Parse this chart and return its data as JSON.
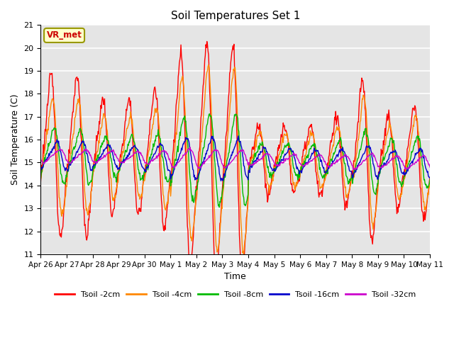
{
  "title": "Soil Temperatures Set 1",
  "xlabel": "Time",
  "ylabel": "Soil Temperature (C)",
  "ylim": [
    11.0,
    21.0
  ],
  "yticks": [
    11.0,
    12.0,
    13.0,
    14.0,
    15.0,
    16.0,
    17.0,
    18.0,
    19.0,
    20.0,
    21.0
  ],
  "background_color": "#e5e5e5",
  "line_colors": {
    "Tsoil -2cm": "#ff0000",
    "Tsoil -4cm": "#ff8800",
    "Tsoil -8cm": "#00bb00",
    "Tsoil -16cm": "#0000cc",
    "Tsoil -32cm": "#cc00cc"
  },
  "annotation_text": "VR_met",
  "annotation_bg": "#ffffcc",
  "annotation_border": "#999900",
  "annotation_text_color": "#cc0000",
  "xtick_labels": [
    "Apr 26",
    "Apr 27",
    "Apr 28",
    "Apr 29",
    "Apr 30",
    "May 1",
    "May 2",
    "May 3",
    "May 4",
    "May 5",
    "May 6",
    "May 7",
    "May 8",
    "May 9",
    "May 10",
    "May 11"
  ]
}
